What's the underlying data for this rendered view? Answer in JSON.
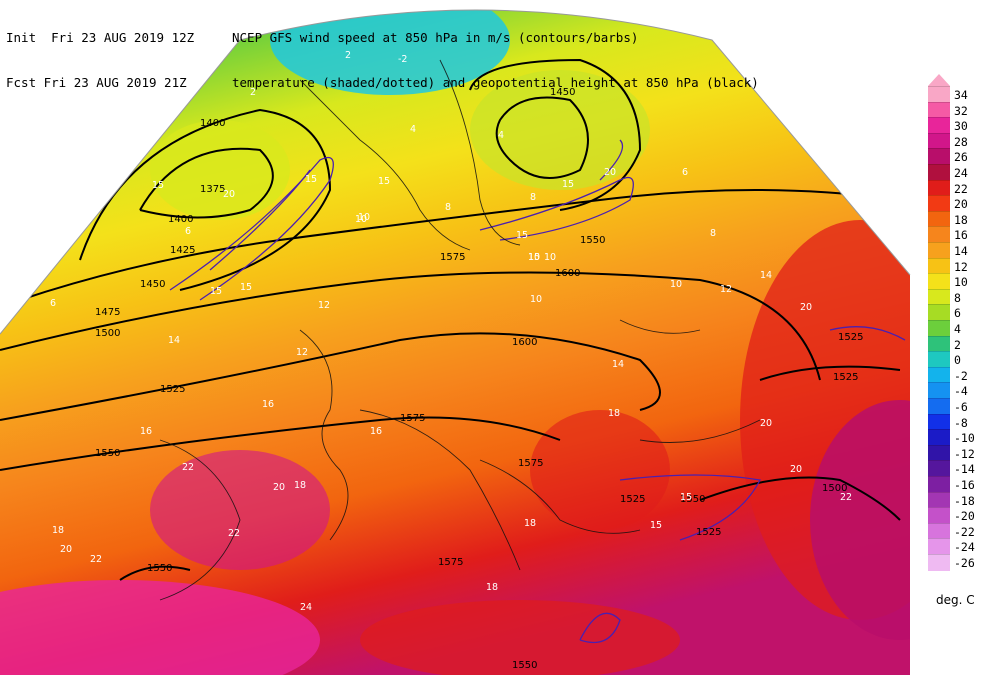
{
  "header": {
    "init_line": "Init  Fri 23 AUG 2019 12Z",
    "fcst_line": "Fcst Fri 23 AUG 2019 21Z",
    "title_line": "NCEP GFS wind speed at 850 hPa in m/s (contours/barbs)",
    "subtitle_line": "temperature (shaded/dotted) and geopotential height at 850 hPa (black)"
  },
  "colorbar": {
    "unit": "deg. C",
    "levels": [
      34,
      32,
      30,
      28,
      26,
      24,
      22,
      20,
      18,
      16,
      14,
      12,
      10,
      8,
      6,
      4,
      2,
      0,
      -2,
      -4,
      -6,
      -8,
      -10,
      -12,
      -14,
      -16,
      -18,
      -20,
      -22,
      -24,
      -26
    ],
    "colors": [
      "#f9a7c6",
      "#f55aa5",
      "#e8259a",
      "#d1168a",
      "#b80e6a",
      "#b0103e",
      "#e01d1a",
      "#f23a14",
      "#f2650f",
      "#f6851c",
      "#f7a11d",
      "#f7c215",
      "#f4e11a",
      "#d8e81d",
      "#a7dc24",
      "#6ccf3c",
      "#2ec27a",
      "#1ec8c0",
      "#13b3ec",
      "#1592f1",
      "#146cf0",
      "#1230e8",
      "#1b1bc7",
      "#3014a8",
      "#55169d",
      "#7d1fa2",
      "#a336b3",
      "#c451c9",
      "#d774dd",
      "#e595ea",
      "#efbaf2"
    ]
  },
  "map": {
    "height_labels": [
      "1400",
      "1375",
      "1400",
      "1425",
      "1450",
      "1475",
      "1500",
      "1525",
      "1550",
      "1550",
      "1575",
      "1575",
      "1575",
      "1575",
      "1600",
      "1600",
      "1450",
      "1550",
      "1525",
      "1525",
      "1525",
      "1525",
      "1500",
      "1550",
      "1550"
    ],
    "temp_labels": [
      "2",
      "-2",
      "2",
      "4",
      "4",
      "4",
      "6",
      "6",
      "6",
      "8",
      "8",
      "8",
      "10",
      "10",
      "10",
      "10",
      "12",
      "12",
      "12",
      "14",
      "14",
      "14",
      "16",
      "16",
      "16",
      "18",
      "18",
      "18",
      "18",
      "20",
      "20",
      "20",
      "20",
      "22",
      "22",
      "22",
      "24",
      "22",
      "20",
      "18"
    ],
    "wind_labels": [
      "15",
      "20",
      "15",
      "15",
      "15",
      "10",
      "15",
      "15",
      "20",
      "15",
      "15",
      "15",
      "15",
      "10"
    ]
  }
}
